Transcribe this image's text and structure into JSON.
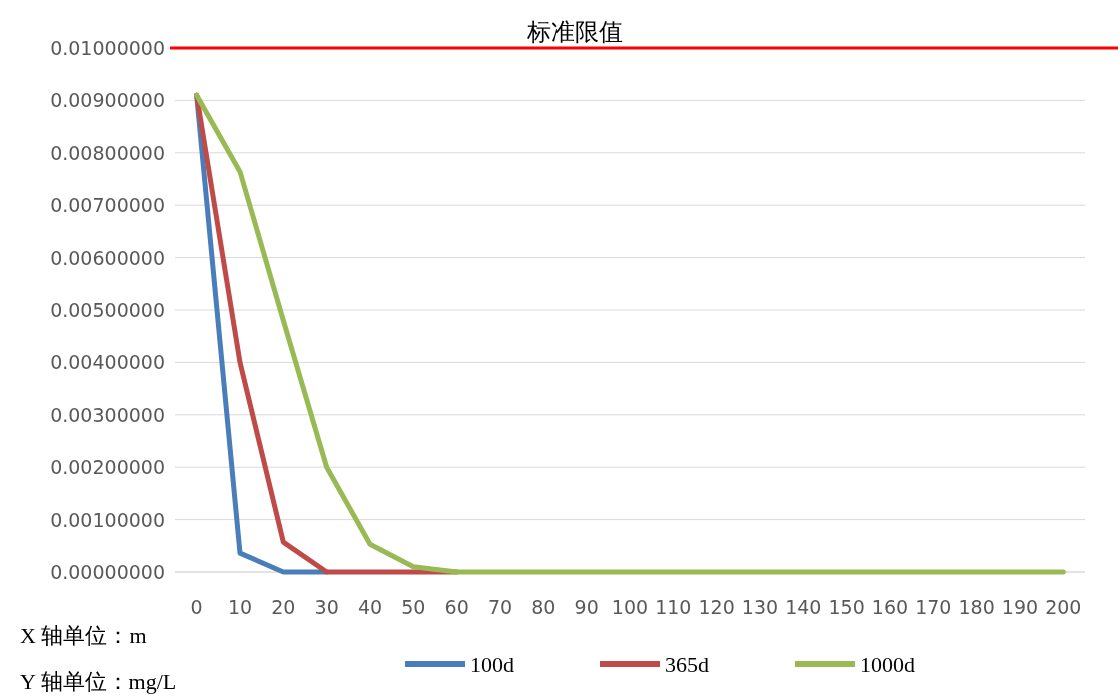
{
  "chart_data": {
    "type": "line",
    "categories": [
      "0",
      "10",
      "20",
      "30",
      "40",
      "50",
      "60",
      "70",
      "80",
      "90",
      "100",
      "110",
      "120",
      "130",
      "140",
      "150",
      "160",
      "170",
      "180",
      "190",
      "200"
    ],
    "series": [
      {
        "name": "100d",
        "color": "#4a7ebb",
        "values": [
          0.0091,
          0.00036,
          0,
          0,
          null,
          null,
          null,
          null,
          null,
          null,
          null,
          null,
          null,
          null,
          null,
          null,
          null,
          null,
          null,
          null,
          null
        ]
      },
      {
        "name": "365d",
        "color": "#be4b48",
        "values": [
          0.0091,
          0.004,
          0.00057,
          0,
          0,
          0,
          0,
          null,
          null,
          null,
          null,
          null,
          null,
          null,
          null,
          null,
          null,
          null,
          null,
          null,
          null
        ]
      },
      {
        "name": "1000d",
        "color": "#98b954",
        "values": [
          0.0091,
          0.00764,
          0.0048,
          0.002,
          0.00053,
          0.0001,
          0,
          0,
          0,
          0,
          0,
          0,
          0,
          0,
          0,
          0,
          0,
          0,
          0,
          0,
          0
        ]
      }
    ],
    "ylim": [
      0,
      0.01
    ],
    "yticks": [
      {
        "value": 0,
        "label": "0.00000000"
      },
      {
        "value": 0.001,
        "label": "0.00100000"
      },
      {
        "value": 0.002,
        "label": "0.00200000"
      },
      {
        "value": 0.003,
        "label": "0.00300000"
      },
      {
        "value": 0.004,
        "label": "0.00400000"
      },
      {
        "value": 0.005,
        "label": "0.00500000"
      },
      {
        "value": 0.006,
        "label": "0.00600000"
      },
      {
        "value": 0.007,
        "label": "0.00700000"
      },
      {
        "value": 0.008,
        "label": "0.00800000"
      },
      {
        "value": 0.009,
        "label": "0.00900000"
      },
      {
        "value": 0.01,
        "label": "0.01000000"
      }
    ],
    "ref_lines": [
      {
        "axis": "y",
        "value": 0.01,
        "label": "标准限值",
        "color": "#ff0000"
      }
    ],
    "annotations": [
      "X 轴单位：m",
      "Y 轴单位：mg/L"
    ],
    "grid": "y",
    "legend": "bottom",
    "marker": "none",
    "line_style": "solid"
  }
}
